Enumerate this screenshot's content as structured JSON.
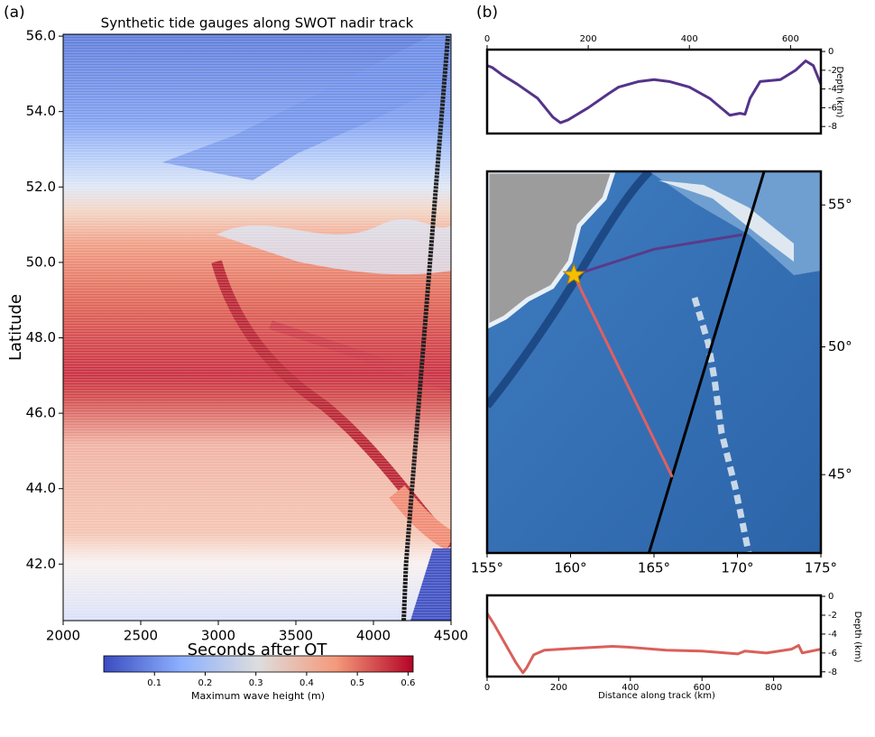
{
  "chart_data": [
    {
      "type": "line",
      "panel_label": "(a)",
      "title": "Synthetic tide gauges along SWOT nadir track",
      "xlabel": "Seconds after OT",
      "ylabel": "Latitude",
      "xlim": [
        2000,
        4500
      ],
      "xticks": [
        2000,
        2500,
        3000,
        3500,
        4000,
        4500
      ],
      "ylim": [
        40.5,
        56.05
      ],
      "yticks": [
        {
          "value": 42,
          "label": "42.0"
        },
        {
          "value": 44,
          "label": "44.0"
        },
        {
          "value": 46,
          "label": "46.0"
        },
        {
          "value": 48,
          "label": "48.0"
        },
        {
          "value": 50,
          "label": "50.0"
        },
        {
          "value": 52,
          "label": "52.0"
        },
        {
          "value": 54,
          "label": "54.0"
        },
        {
          "value": 56,
          "label": "56.0"
        }
      ],
      "series": [
        {
          "color": "#222222",
          "x": [
            4195,
            4210,
            4480
          ],
          "values": [
            40.5,
            42.0,
            56.0
          ]
        }
      ],
      "colorbar": {
        "label": "Maximum wave height (m)",
        "clim": [
          0,
          0.61
        ],
        "ticks": [
          0.1,
          0.2,
          0.3,
          0.4,
          0.5,
          0.6
        ],
        "colors": [
          "#3b4cc0",
          "#8db0fe",
          "#dddddd",
          "#f49a7b",
          "#b40426"
        ]
      }
    },
    {
      "type": "line",
      "panel_label": "(b)",
      "ylabel": "Depth (km)",
      "xaxis_position": "top",
      "yaxis_position": "right",
      "xlim": [
        0,
        660
      ],
      "xticks": [
        0,
        200,
        400,
        600
      ],
      "ylim": [
        -8.75,
        0.2
      ],
      "yticks": [
        0,
        -2,
        -4,
        -6,
        -8
      ],
      "series": [
        {
          "color": "#55338a",
          "x": [
            0,
            10,
            30,
            60,
            100,
            130,
            145,
            160,
            200,
            240,
            260,
            300,
            330,
            360,
            400,
            440,
            480,
            500,
            510,
            520,
            540,
            580,
            610,
            630,
            645,
            660
          ],
          "values": [
            -1.5,
            -1.7,
            -2.5,
            -3.5,
            -5,
            -7,
            -7.6,
            -7.3,
            -6,
            -4.5,
            -3.8,
            -3.2,
            -3,
            -3.2,
            -3.8,
            -5,
            -6.8,
            -6.6,
            -6.7,
            -5,
            -3.2,
            -3,
            -2,
            -1,
            -1.5,
            -3.5
          ]
        }
      ]
    },
    {
      "type": "map",
      "projection": "mercator",
      "yaxis_position": "right",
      "xlim": [
        155,
        175
      ],
      "xticks": [
        {
          "value": 155,
          "label": "155°"
        },
        {
          "value": 160,
          "label": "160°"
        },
        {
          "value": 165,
          "label": "165°"
        },
        {
          "value": 170,
          "label": "170°"
        },
        {
          "value": 175,
          "label": "175°"
        }
      ],
      "ylim": [
        41.7,
        56.1
      ],
      "yticks": [
        {
          "value": 45,
          "label": "45°"
        },
        {
          "value": 50,
          "label": "50°"
        },
        {
          "value": 55,
          "label": "55°"
        }
      ],
      "series": [
        {
          "color": "#000000",
          "x": [
            164.7,
            171.6
          ],
          "values": [
            41.7,
            56.1
          ]
        },
        {
          "color": "#5b3a8c",
          "x": [
            160.2,
            165.0,
            170.3
          ],
          "values": [
            52.6,
            53.5,
            54.0
          ]
        },
        {
          "color": "#e06060",
          "x": [
            160.2,
            166.1
          ],
          "values": [
            52.6,
            44.9
          ]
        }
      ],
      "marker": {
        "color": "#f5c000",
        "x": 160.2,
        "y": 52.6
      }
    },
    {
      "type": "line",
      "xlabel": "Distance along track (km)",
      "ylabel": "Depth (km)",
      "yaxis_position": "right",
      "xlim": [
        0,
        932
      ],
      "xticks": [
        0,
        200,
        400,
        600,
        800
      ],
      "ylim": [
        -8.5,
        0.1
      ],
      "yticks": [
        0,
        -2,
        -4,
        -6,
        -8
      ],
      "series": [
        {
          "color": "#d9605a",
          "x": [
            0,
            20,
            50,
            80,
            100,
            110,
            130,
            160,
            250,
            350,
            400,
            500,
            600,
            700,
            720,
            780,
            850,
            870,
            880,
            932
          ],
          "values": [
            -1.8,
            -3,
            -5,
            -7,
            -8.1,
            -7.6,
            -6.2,
            -5.7,
            -5.5,
            -5.3,
            -5.4,
            -5.7,
            -5.8,
            -6.1,
            -5.8,
            -6.0,
            -5.6,
            -5.2,
            -6,
            -5.6
          ]
        }
      ]
    }
  ]
}
